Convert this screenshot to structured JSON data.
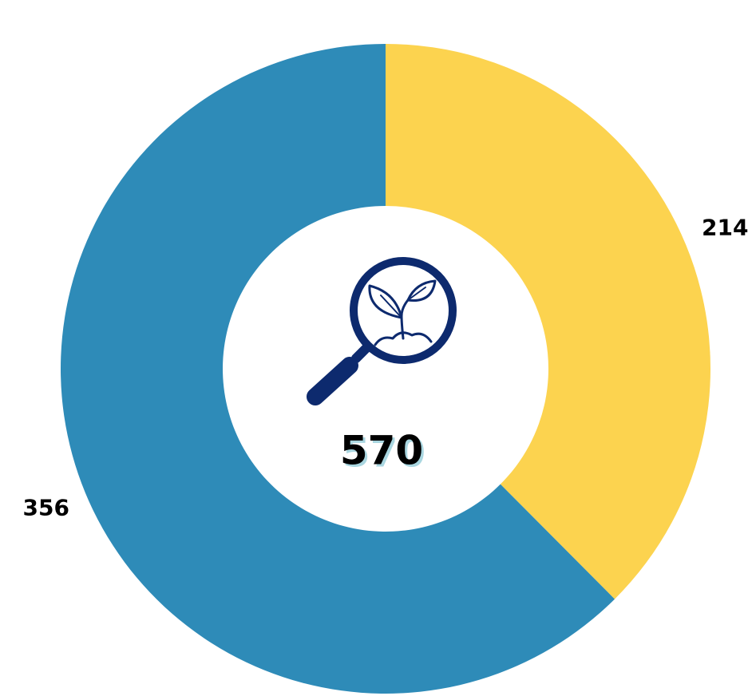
{
  "chart_data": {
    "type": "donut",
    "categories": [
      null,
      null
    ],
    "values": [
      214,
      356
    ],
    "colors": [
      "#fcd34f",
      "#2e8bb8"
    ],
    "total": 570
  }
}
